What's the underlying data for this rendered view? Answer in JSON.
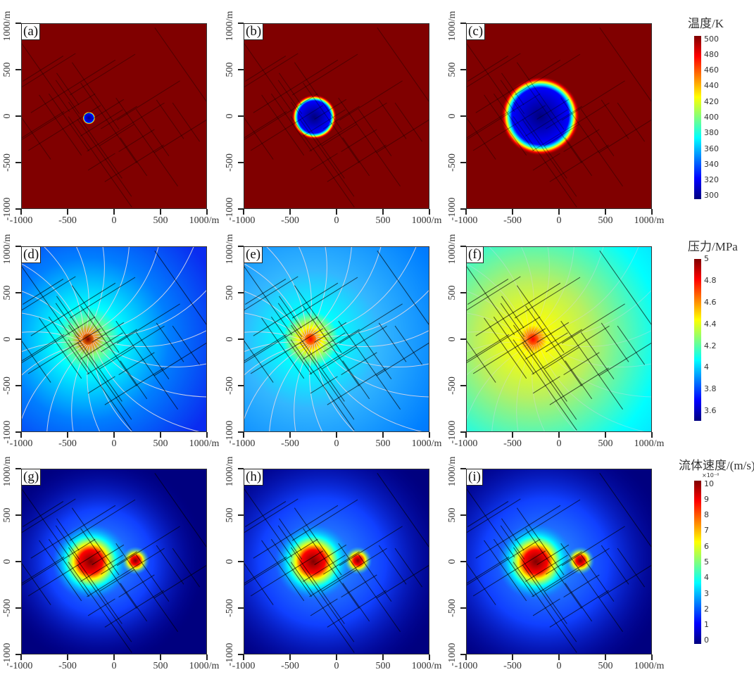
{
  "chart_data": {
    "type": "heatmap",
    "description_axis": {
      "x_ticks": [
        "-1000",
        "-500",
        "0",
        "500",
        "1000/m"
      ],
      "y_ticks": [
        "-1000",
        "-500",
        "0",
        "500",
        "1000/m"
      ],
      "xlim": [
        -1000,
        1000
      ],
      "ylim": [
        -1000,
        1000
      ]
    },
    "rows": [
      {
        "quantity": "temperature",
        "colorbar": {
          "title": "温度/K",
          "range": [
            300,
            505
          ],
          "ticks": [
            "500",
            "480",
            "460",
            "440",
            "420",
            "400",
            "380",
            "360",
            "340",
            "320",
            "300"
          ],
          "exponent": ""
        },
        "panels": [
          {
            "label": "(a)",
            "background": "#800000",
            "cold_zone_radius_m": 60,
            "cold_center": [
              -270,
              -20
            ]
          },
          {
            "label": "(b)",
            "background": "#800000",
            "cold_zone_radius_m": 210,
            "cold_center": [
              -240,
              -10
            ]
          },
          {
            "label": "(c)",
            "background": "#800000",
            "cold_zone_radius_m": 370,
            "cold_center": [
              -200,
              0
            ]
          }
        ]
      },
      {
        "quantity": "pressure",
        "colorbar": {
          "title": "压力/MPa",
          "range": [
            3.5,
            5.0
          ],
          "ticks": [
            "5",
            "4.8",
            "4.6",
            "4.4",
            "4.2",
            "4",
            "3.8",
            "3.6"
          ],
          "exponent": ""
        },
        "panels": [
          {
            "label": "(d)",
            "peak_center": [
              -280,
              0
            ],
            "peak_value": 4.9,
            "far_value": 3.75
          },
          {
            "label": "(e)",
            "peak_center": [
              -280,
              0
            ],
            "peak_value": 4.8,
            "far_value": 3.8
          },
          {
            "label": "(f)",
            "peak_center": [
              -280,
              0
            ],
            "peak_value": 4.7,
            "far_value": 4.0
          }
        ]
      },
      {
        "quantity": "fluid_velocity",
        "colorbar": {
          "title": "流体速度/(m/s)",
          "range": [
            0,
            10
          ],
          "ticks": [
            "10",
            "9",
            "8",
            "7",
            "6",
            "5",
            "4",
            "3",
            "2",
            "1",
            "0"
          ],
          "exponent": "×10⁻⁸"
        },
        "panels": [
          {
            "label": "(g)",
            "hotspots": [
              [
                -250,
                0
              ],
              [
                230,
                10
              ]
            ],
            "peak_value": 10
          },
          {
            "label": "(h)",
            "hotspots": [
              [
                -250,
                0
              ],
              [
                230,
                10
              ]
            ],
            "peak_value": 10
          },
          {
            "label": "(i)",
            "hotspots": [
              [
                -250,
                0
              ],
              [
                230,
                10
              ]
            ],
            "peak_value": 10
          }
        ]
      }
    ]
  },
  "colors": {
    "jet": [
      "#00007f",
      "#0000ff",
      "#007fff",
      "#00ffff",
      "#7fff7f",
      "#ffff00",
      "#ff7f00",
      "#ff0000",
      "#7f0000"
    ],
    "fracture": "#000000",
    "streamline": "#d8d8e8"
  }
}
